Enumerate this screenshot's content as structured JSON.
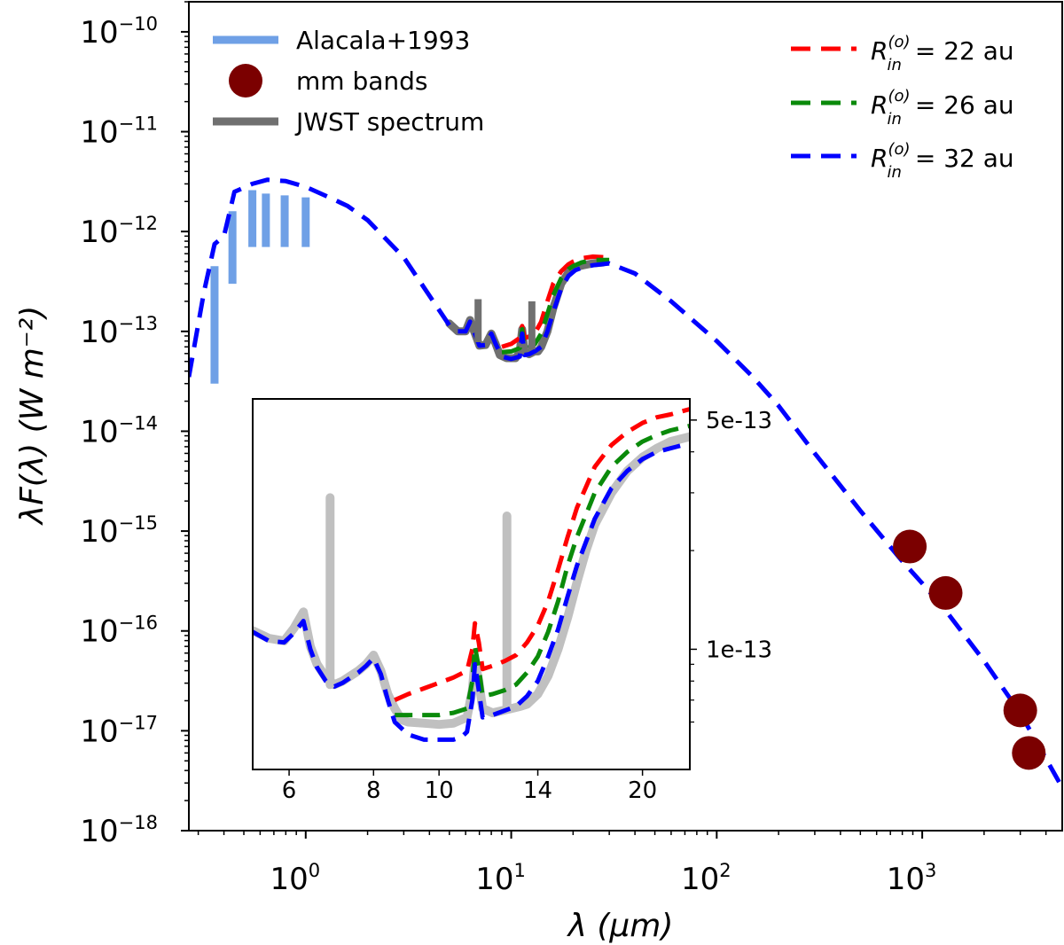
{
  "chart_data": [
    {
      "type": "line",
      "scale": "log-log",
      "xlabel": "λ (μm)",
      "ylabel": "λF(λ) (W m⁻²)",
      "xlim": [
        0.27,
        4800
      ],
      "ylim": [
        1e-18,
        2e-10
      ],
      "x_ticks": [
        {
          "value": 1,
          "base": "10",
          "exp": "0"
        },
        {
          "value": 10,
          "base": "10",
          "exp": "1"
        },
        {
          "value": 100,
          "base": "10",
          "exp": "2"
        },
        {
          "value": 1000,
          "base": "10",
          "exp": "3"
        }
      ],
      "y_ticks": [
        {
          "value": 1e-10,
          "base": "10",
          "exp": "−10"
        },
        {
          "value": 1e-11,
          "base": "10",
          "exp": "−11"
        },
        {
          "value": 1e-12,
          "base": "10",
          "exp": "−12"
        },
        {
          "value": 1e-13,
          "base": "10",
          "exp": "−13"
        },
        {
          "value": 1e-14,
          "base": "10",
          "exp": "−14"
        },
        {
          "value": 1e-15,
          "base": "10",
          "exp": "−15"
        },
        {
          "value": 1e-16,
          "base": "10",
          "exp": "−16"
        },
        {
          "value": 1e-17,
          "base": "10",
          "exp": "−17"
        },
        {
          "value": 1e-18,
          "base": "10",
          "exp": "−18"
        }
      ],
      "legend_left": [
        {
          "label": "Alacala+1993",
          "kind": "line",
          "color": "#6fa0e6"
        },
        {
          "label": "mm bands",
          "kind": "marker",
          "color": "#7b0000"
        },
        {
          "label": "JWST spectrum",
          "kind": "line",
          "color": "#707070"
        }
      ],
      "legend_right": [
        {
          "label_main": "R",
          "label_sup": "(o)",
          "label_sub": "in",
          "label_rest": " = 22 au",
          "color": "#ff0000"
        },
        {
          "label_main": "R",
          "label_sup": "(o)",
          "label_sub": "in",
          "label_rest": " = 26 au",
          "color": "#0a8a0a"
        },
        {
          "label_main": "R",
          "label_sup": "(o)",
          "label_sub": "in",
          "label_rest": " = 32 au",
          "color": "#0000ff"
        }
      ],
      "alcala_bars": [
        {
          "x": 0.36,
          "y_low": 3e-14,
          "y_high": 4.5e-13
        },
        {
          "x": 0.44,
          "y_low": 3e-13,
          "y_high": 1.6e-12
        },
        {
          "x": 0.55,
          "y_low": 7e-13,
          "y_high": 2.6e-12
        },
        {
          "x": 0.64,
          "y_low": 7e-13,
          "y_high": 2.4e-12
        },
        {
          "x": 0.79,
          "y_low": 7e-13,
          "y_high": 2.3e-12
        },
        {
          "x": 1.0,
          "y_low": 7e-13,
          "y_high": 2.2e-12
        }
      ],
      "mm_bands": [
        {
          "x": 870,
          "y": 7e-16
        },
        {
          "x": 1300,
          "y": 2.4e-16
        },
        {
          "x": 3000,
          "y": 1.6e-17
        },
        {
          "x": 3300,
          "y": 6e-18
        }
      ],
      "series": [
        {
          "name": "JWST spectrum",
          "color": "#707070",
          "x": [
            5,
            5.5,
            6,
            6.3,
            6.6,
            7.0,
            7.5,
            8.0,
            8.4,
            8.8,
            9.5,
            10.5,
            11.0,
            11.3,
            11.6,
            12.2,
            13.0,
            13.5,
            14.0,
            15.0,
            16.0,
            17.5,
            19.0,
            20.5,
            22.5,
            25,
            28
          ],
          "y": [
            1.2e-13,
            1e-13,
            1e-13,
            1.3e-13,
            1e-13,
            7.2e-14,
            7.3e-14,
            9.5e-14,
            7.5e-14,
            5.8e-14,
            5.4e-14,
            5.4e-14,
            6.2e-14,
            1.05e-13,
            6.3e-14,
            5.9e-14,
            6.3e-14,
            6.3e-14,
            7e-14,
            1e-13,
            1.7e-13,
            3e-13,
            3.9e-13,
            4.4e-13,
            4.6e-13,
            4.8e-13,
            4.9e-13
          ]
        },
        {
          "name": "model R_in = 22 au",
          "color": "#ff0000",
          "x": [
            9,
            10,
            11,
            11.3,
            11.6,
            12.5,
            13,
            14,
            15,
            16,
            17.5,
            19,
            20,
            22,
            25,
            30
          ],
          "y": [
            7e-14,
            7.5e-14,
            8.6e-14,
            1.13e-13,
            8.6e-14,
            9e-14,
            9.5e-14,
            1.25e-13,
            2e-13,
            3e-13,
            4e-13,
            4.7e-13,
            5e-13,
            5.4e-13,
            5.6e-13,
            5.5e-13
          ]
        },
        {
          "name": "model R_in = 26 au",
          "color": "#0a8a0a",
          "x": [
            9,
            10,
            11,
            11.3,
            11.6,
            12.5,
            13,
            14,
            15,
            16,
            17.5,
            19,
            20,
            22,
            25,
            30
          ],
          "y": [
            6.2e-14,
            6.3e-14,
            6.8e-14,
            1.05e-13,
            6.8e-14,
            7e-14,
            7.4e-14,
            9.5e-14,
            1.5e-13,
            2.3e-13,
            3.4e-13,
            4.2e-13,
            4.5e-13,
            4.9e-13,
            5.2e-13,
            5.2e-13
          ]
        },
        {
          "name": "model R_in = 32 au",
          "color": "#0000ff",
          "x": [
            0.27,
            0.32,
            0.36,
            0.4,
            0.45,
            0.55,
            0.65,
            0.8,
            1.0,
            1.3,
            1.6,
            2.0,
            3.0,
            5.0,
            5.5,
            6.0,
            6.3,
            6.6,
            7.0,
            7.5,
            8.0,
            8.4,
            9.0,
            10.0,
            11.0,
            11.3,
            11.6,
            12.2,
            13.0,
            14.0,
            15.0,
            16.0,
            17.5,
            19.0,
            20.5,
            22.5,
            25,
            30,
            40,
            60,
            100,
            150,
            200,
            300,
            500,
            800,
            1000,
            1300,
            2000,
            3000,
            4800
          ],
          "y": [
            3.5e-14,
            2.5e-13,
            7.5e-13,
            9e-13,
            2.5e-12,
            3e-12,
            3.3e-12,
            3.2e-12,
            2.8e-12,
            2.2e-12,
            1.8e-12,
            1.3e-12,
            5.5e-13,
            1.15e-13,
            1e-13,
            1e-13,
            1.25e-13,
            1e-13,
            7.2e-14,
            7.3e-14,
            9.5e-14,
            7.5e-14,
            5.6e-14,
            5.3e-14,
            5.6e-14,
            9.5e-14,
            5.8e-14,
            5.9e-14,
            6.3e-14,
            7e-14,
            1e-13,
            1.55e-13,
            2.7e-13,
            3.6e-13,
            4.1e-13,
            4.4e-13,
            4.6e-13,
            4.8e-13,
            3.8e-13,
            2e-13,
            8e-14,
            3.5e-14,
            1.8e-14,
            6e-15,
            1.6e-15,
            5e-16,
            3e-16,
            1.6e-16,
            5e-17,
            1.5e-17,
            2.7e-18
          ]
        }
      ]
    },
    {
      "type": "line",
      "scale": "log-log",
      "role": "inset",
      "xlim": [
        5.3,
        23.5
      ],
      "ylim": [
        4.3e-14,
        5.8e-13
      ],
      "x_ticks": [
        {
          "value": 6,
          "label": "6"
        },
        {
          "value": 8,
          "label": "8"
        },
        {
          "value": 10,
          "label": "10"
        },
        {
          "value": 14,
          "label": "14"
        },
        {
          "value": 20,
          "label": "20"
        }
      ],
      "y_ticks": [
        {
          "value": 5e-13,
          "label": "5e-13"
        },
        {
          "value": 1e-13,
          "label": "1e-13"
        }
      ],
      "series": [
        {
          "name": "JWST spectrum (inset)",
          "color": "#c0c0c0",
          "x": [
            5.3,
            5.6,
            5.9,
            6.1,
            6.3,
            6.45,
            6.6,
            6.8,
            7.0,
            7.2,
            7.4,
            7.6,
            7.8,
            8.0,
            8.2,
            8.4,
            8.6,
            8.8,
            9.0,
            9.5,
            10.0,
            10.5,
            11.0,
            11.2,
            11.3,
            11.45,
            11.6,
            12.0,
            12.4,
            12.8,
            13.2,
            13.5,
            14.0,
            14.5,
            15.0,
            15.5,
            16.0,
            16.5,
            17.0,
            18.0,
            19.0,
            20.0,
            21.0,
            22.0,
            23.5
          ],
          "y": [
            1.14e-13,
            1.08e-13,
            1.06e-13,
            1.16e-13,
            1.3e-13,
            1.02e-13,
            9e-14,
            8.2e-14,
            7.8e-14,
            8e-14,
            8.3e-14,
            8.6e-14,
            9e-14,
            9.6e-14,
            8.6e-14,
            7.3e-14,
            6.6e-14,
            6.1e-14,
            6e-14,
            5.95e-14,
            5.9e-14,
            5.95e-14,
            6.2e-14,
            7.5e-14,
            9.2e-14,
            8e-14,
            6.6e-14,
            6.4e-14,
            6.5e-14,
            6.6e-14,
            6.7e-14,
            6.8e-14,
            7.3e-14,
            8.3e-14,
            1e-13,
            1.25e-13,
            1.6e-13,
            2e-13,
            2.4e-13,
            3e-13,
            3.5e-13,
            3.85e-13,
            4.1e-13,
            4.3e-13,
            4.45e-13
          ]
        },
        {
          "name": "JWST spike 1",
          "color": "#c0c0c0",
          "x": [
            6.9,
            6.9
          ],
          "y": [
            7.8e-14,
            2.9e-13
          ]
        },
        {
          "name": "JWST spike 2",
          "color": "#c0c0c0",
          "x": [
            12.6,
            12.6
          ],
          "y": [
            6.6e-14,
            2.55e-13
          ]
        },
        {
          "name": "model R_in = 22 au (inset)",
          "color": "#ff0000",
          "x": [
            8.6,
            9.0,
            9.5,
            10.0,
            10.5,
            11.0,
            11.2,
            11.3,
            11.45,
            11.6,
            12.0,
            12.5,
            13.0,
            13.5,
            14.0,
            14.5,
            15.0,
            15.5,
            16.0,
            17.0,
            18.0,
            19.0,
            20.0,
            21.0,
            22.0,
            23.5
          ],
          "y": [
            7e-14,
            7.3e-14,
            7.6e-14,
            7.9e-14,
            8.2e-14,
            8.6e-14,
            1e-13,
            1.2e-13,
            1.05e-13,
            8.7e-14,
            8.9e-14,
            9.2e-14,
            9.6e-14,
            1.05e-13,
            1.18e-13,
            1.4e-13,
            1.75e-13,
            2.2e-13,
            2.7e-13,
            3.6e-13,
            4.2e-13,
            4.6e-13,
            4.9e-13,
            5.1e-13,
            5.2e-13,
            5.4e-13
          ]
        },
        {
          "name": "model R_in = 26 au (inset)",
          "color": "#0a8a0a",
          "x": [
            8.6,
            9.0,
            9.5,
            10.0,
            10.5,
            11.0,
            11.2,
            11.3,
            11.45,
            11.6,
            12.0,
            12.5,
            13.0,
            13.5,
            14.0,
            14.5,
            15.0,
            15.5,
            16.0,
            17.0,
            18.0,
            19.0,
            20.0,
            21.0,
            22.0,
            23.5
          ],
          "y": [
            6.3e-14,
            6.3e-14,
            6.3e-14,
            6.3e-14,
            6.4e-14,
            6.6e-14,
            8e-14,
            1.02e-13,
            8.8e-14,
            7.2e-14,
            7.3e-14,
            7.5e-14,
            7.8e-14,
            8.5e-14,
            9.5e-14,
            1.13e-13,
            1.4e-13,
            1.8e-13,
            2.2e-13,
            3e-13,
            3.6e-13,
            4e-13,
            4.3e-13,
            4.5e-13,
            4.65e-13,
            4.8e-13
          ]
        },
        {
          "name": "model R_in = 32 au (inset)",
          "color": "#0000ff",
          "x": [
            5.3,
            5.6,
            5.9,
            6.1,
            6.3,
            6.45,
            6.6,
            6.8,
            7.0,
            7.2,
            7.4,
            7.6,
            7.8,
            8.0,
            8.2,
            8.4,
            8.6,
            9.0,
            9.5,
            10.0,
            10.5,
            10.8,
            11.0,
            11.2,
            11.3,
            11.45,
            11.6,
            12.0,
            12.5,
            13.0,
            13.5,
            14.0,
            14.5,
            15.0,
            15.5,
            16.0,
            17.0,
            18.0,
            19.0,
            20.0,
            21.0,
            22.0,
            23.5
          ],
          "y": [
            1.13e-13,
            1.06e-13,
            1.05e-13,
            1.12e-13,
            1.22e-13,
            1e-13,
            8.8e-14,
            8e-14,
            7.7e-14,
            7.9e-14,
            8.2e-14,
            8.5e-14,
            8.9e-14,
            9.4e-14,
            8.4e-14,
            7e-14,
            6e-14,
            5.5e-14,
            5.3e-14,
            5.3e-14,
            5.3e-14,
            5.4e-14,
            5.6e-14,
            7e-14,
            9e-14,
            7.5e-14,
            6.2e-14,
            6.3e-14,
            6.5e-14,
            6.7e-14,
            7.2e-14,
            8e-14,
            9.5e-14,
            1.15e-13,
            1.45e-13,
            1.8e-13,
            2.5e-13,
            3.1e-13,
            3.5e-13,
            3.8e-13,
            4e-13,
            4.1e-13,
            4.25e-13
          ]
        }
      ]
    }
  ]
}
